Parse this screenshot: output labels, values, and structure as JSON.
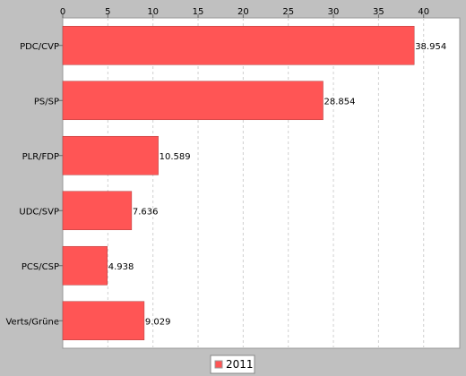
{
  "chart_data": {
    "type": "bar",
    "orientation": "horizontal",
    "categories": [
      "PDC/CVP",
      "PS/SP",
      "PLR/FDP",
      "UDC/SVP",
      "PCS/CSP",
      "Verts/Grüne"
    ],
    "series": [
      {
        "name": "2011",
        "color": "#ff5555",
        "values": [
          38.954,
          28.854,
          10.589,
          7.636,
          4.938,
          9.029
        ],
        "labels": [
          "38.954",
          "28.854",
          "10.589",
          "7.636",
          "4.938",
          "9.029"
        ]
      }
    ],
    "xticks": [
      "0",
      "5",
      "10",
      "15",
      "20",
      "25",
      "30",
      "35",
      "40"
    ],
    "xlim": [
      0,
      44
    ],
    "x_axis_position": "top",
    "grid": "vertical dashed",
    "legend": "bottom-center",
    "title": "",
    "xlabel": "",
    "ylabel": ""
  }
}
